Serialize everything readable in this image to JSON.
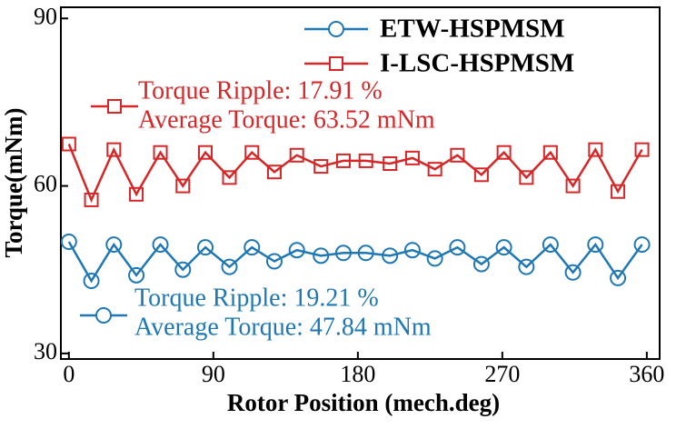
{
  "chart_data": {
    "type": "line",
    "x_label": "Rotor Position (mech.deg)",
    "y_label": "Torque(mNm)",
    "xlim": [
      -5,
      368
    ],
    "ylim": [
      29,
      92
    ],
    "xticks": [
      0,
      90,
      180,
      270,
      360
    ],
    "yticks": [
      30,
      60,
      90
    ],
    "legend_position": "upper right",
    "x": [
      0,
      14,
      28,
      42,
      57,
      71,
      85,
      100,
      114,
      128,
      142,
      157,
      171,
      185,
      200,
      214,
      228,
      242,
      257,
      271,
      285,
      300,
      314,
      328,
      342,
      357
    ],
    "series": [
      {
        "name": "ETW-HSPMSM",
        "color": "#1f77b4",
        "marker": "circle",
        "values": [
          50,
          43,
          49.5,
          44,
          49.5,
          45,
          49,
          45.5,
          49,
          46.5,
          48.5,
          47.5,
          48,
          48,
          47.5,
          48.5,
          47,
          49,
          46,
          49,
          45.5,
          49.5,
          44.5,
          49.5,
          43.5,
          49.5
        ]
      },
      {
        "name": "I-LSC-HSPMSM",
        "color": "#d62728",
        "marker": "square",
        "values": [
          67.5,
          57.5,
          66.5,
          58.5,
          66,
          60,
          66,
          61.5,
          66,
          62.5,
          65.5,
          63.5,
          64.5,
          64.5,
          64,
          65,
          63,
          65.5,
          62,
          66,
          61.5,
          66,
          60,
          66.5,
          59,
          66.5
        ]
      }
    ],
    "annotations": [
      {
        "series": 1,
        "lines": [
          "Torque Ripple: 17.91 %",
          "Average Torque: 63.52 mNm"
        ]
      },
      {
        "series": 0,
        "lines": [
          "Torque Ripple: 19.21 %",
          "Average Torque: 47.84 mNm"
        ]
      }
    ]
  }
}
